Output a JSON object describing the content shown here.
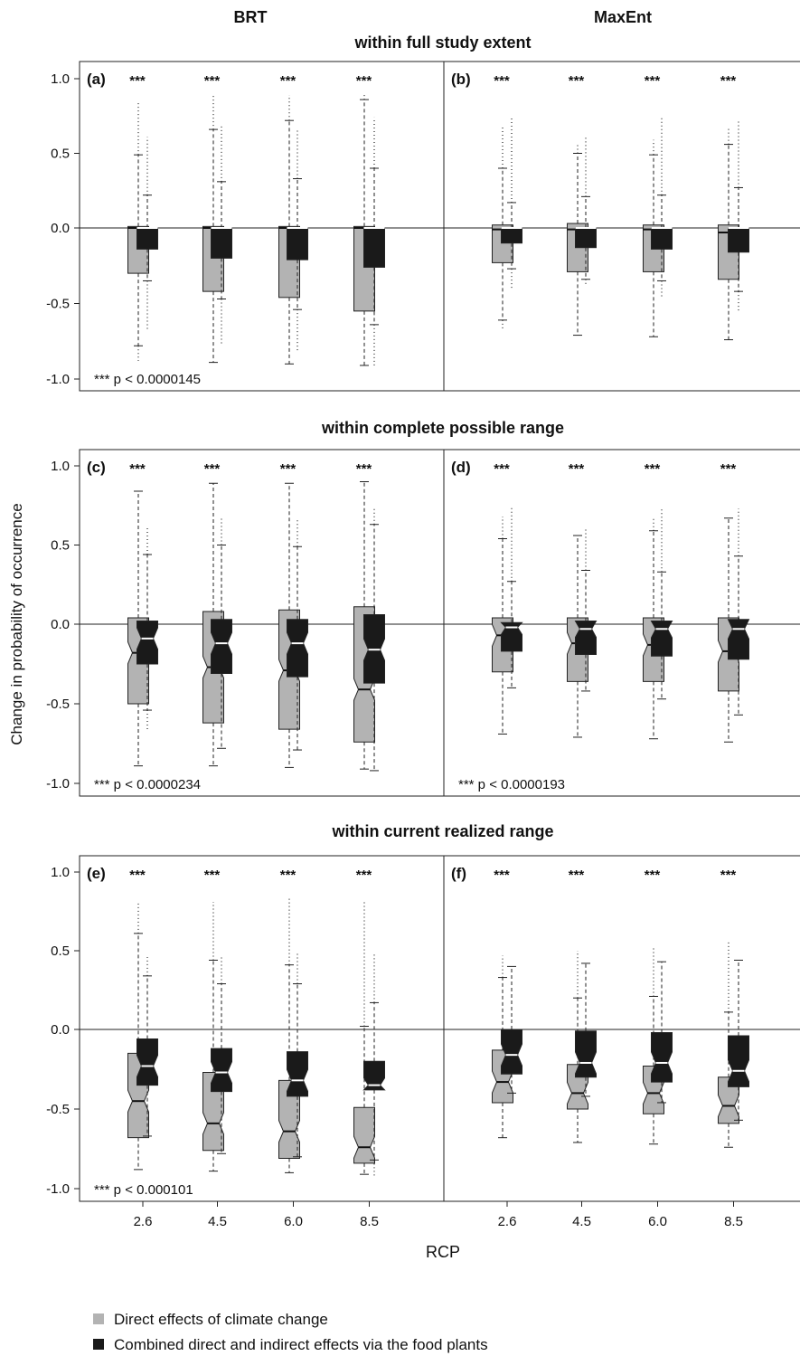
{
  "chart_data": {
    "type": "boxplot",
    "columns": [
      "BRT",
      "MaxEnt"
    ],
    "row_titles": [
      "within full study extent",
      "within complete possible range",
      "within current realized range"
    ],
    "xlabel": "RCP",
    "ylabel": "Change in probability of occurrence",
    "categories": [
      "2.6",
      "4.5",
      "6.0",
      "8.5"
    ],
    "yticks": [
      "1.0",
      "0.5",
      "0.0",
      "-0.5",
      "-1.0"
    ],
    "ylim": [
      -1.05,
      1.1
    ],
    "significance_marker": "***",
    "legend": [
      {
        "name": "Direct effects of climate change",
        "color": "#b3b3b3"
      },
      {
        "name": "Combined direct and indirect effects via the food plants",
        "color": "#1a1a1a"
      }
    ],
    "panels": [
      {
        "label": "(a)",
        "row": 0,
        "col": 0,
        "note": "*** p < 0.0000145",
        "notch": false,
        "groups": [
          {
            "direct": {
              "q1": -0.3,
              "med": 0.0,
              "q3": 0.01,
              "wlo": -0.78,
              "whi": 0.49,
              "min": -0.88,
              "max": 0.85
            },
            "combined": {
              "q1": -0.14,
              "med": 0.0,
              "q3": 0.0,
              "wlo": -0.35,
              "whi": 0.22,
              "min": -0.67,
              "max": 0.61
            }
          },
          {
            "direct": {
              "q1": -0.42,
              "med": 0.0,
              "q3": 0.01,
              "wlo": -0.89,
              "whi": 0.66,
              "min": -0.89,
              "max": 0.89
            },
            "combined": {
              "q1": -0.2,
              "med": 0.0,
              "q3": 0.0,
              "wlo": -0.47,
              "whi": 0.31,
              "min": -0.78,
              "max": 0.68
            }
          },
          {
            "direct": {
              "q1": -0.46,
              "med": 0.0,
              "q3": 0.01,
              "wlo": -0.9,
              "whi": 0.72,
              "min": -0.9,
              "max": 0.89
            },
            "combined": {
              "q1": -0.21,
              "med": 0.0,
              "q3": 0.0,
              "wlo": -0.54,
              "whi": 0.33,
              "min": -0.81,
              "max": 0.66
            }
          },
          {
            "direct": {
              "q1": -0.55,
              "med": 0.0,
              "q3": 0.01,
              "wlo": -0.91,
              "whi": 0.86,
              "min": -0.91,
              "max": 0.89
            },
            "combined": {
              "q1": -0.26,
              "med": 0.0,
              "q3": 0.0,
              "wlo": -0.64,
              "whi": 0.4,
              "min": -0.92,
              "max": 0.74
            }
          }
        ]
      },
      {
        "label": "(b)",
        "row": 0,
        "col": 1,
        "note": "",
        "notch": false,
        "groups": [
          {
            "direct": {
              "q1": -0.23,
              "med": -0.01,
              "q3": 0.02,
              "wlo": -0.61,
              "whi": 0.4,
              "min": -0.68,
              "max": 0.68
            },
            "combined": {
              "q1": -0.1,
              "med": 0.0,
              "q3": 0.0,
              "wlo": -0.27,
              "whi": 0.17,
              "min": -0.41,
              "max": 0.75
            }
          },
          {
            "direct": {
              "q1": -0.29,
              "med": -0.01,
              "q3": 0.03,
              "wlo": -0.71,
              "whi": 0.5,
              "min": -0.71,
              "max": 0.56
            },
            "combined": {
              "q1": -0.13,
              "med": 0.0,
              "q3": 0.0,
              "wlo": -0.34,
              "whi": 0.21,
              "min": -0.38,
              "max": 0.61
            }
          },
          {
            "direct": {
              "q1": -0.29,
              "med": -0.01,
              "q3": 0.02,
              "wlo": -0.72,
              "whi": 0.49,
              "min": -0.72,
              "max": 0.59
            },
            "combined": {
              "q1": -0.14,
              "med": 0.0,
              "q3": 0.0,
              "wlo": -0.35,
              "whi": 0.22,
              "min": -0.46,
              "max": 0.74
            }
          },
          {
            "direct": {
              "q1": -0.34,
              "med": -0.03,
              "q3": 0.02,
              "wlo": -0.74,
              "whi": 0.56,
              "min": -0.74,
              "max": 0.67
            },
            "combined": {
              "q1": -0.16,
              "med": 0.0,
              "q3": 0.0,
              "wlo": -0.42,
              "whi": 0.27,
              "min": -0.56,
              "max": 0.73
            }
          }
        ]
      },
      {
        "label": "(c)",
        "row": 1,
        "col": 0,
        "note": "*** p < 0.0000234",
        "notch": true,
        "groups": [
          {
            "direct": {
              "q1": -0.5,
              "med": -0.18,
              "q3": 0.04,
              "wlo": -0.89,
              "whi": 0.84,
              "min": -0.89,
              "max": 0.84
            },
            "combined": {
              "q1": -0.25,
              "med": -0.09,
              "q3": 0.02,
              "wlo": -0.54,
              "whi": 0.44,
              "min": -0.67,
              "max": 0.61
            }
          },
          {
            "direct": {
              "q1": -0.62,
              "med": -0.27,
              "q3": 0.08,
              "wlo": -0.89,
              "whi": 0.89,
              "min": -0.89,
              "max": 0.89
            },
            "combined": {
              "q1": -0.31,
              "med": -0.12,
              "q3": 0.03,
              "wlo": -0.78,
              "whi": 0.5,
              "min": -0.78,
              "max": 0.68
            }
          },
          {
            "direct": {
              "q1": -0.66,
              "med": -0.29,
              "q3": 0.09,
              "wlo": -0.9,
              "whi": 0.89,
              "min": -0.9,
              "max": 0.89
            },
            "combined": {
              "q1": -0.33,
              "med": -0.12,
              "q3": 0.03,
              "wlo": -0.79,
              "whi": 0.49,
              "min": -0.79,
              "max": 0.66
            }
          },
          {
            "direct": {
              "q1": -0.74,
              "med": -0.41,
              "q3": 0.11,
              "wlo": -0.91,
              "whi": 0.9,
              "min": -0.91,
              "max": 0.9
            },
            "combined": {
              "q1": -0.37,
              "med": -0.16,
              "q3": 0.06,
              "wlo": -0.92,
              "whi": 0.63,
              "min": -0.92,
              "max": 0.74
            }
          }
        ]
      },
      {
        "label": "(d)",
        "row": 1,
        "col": 1,
        "note": "*** p < 0.0000193",
        "notch": true,
        "groups": [
          {
            "direct": {
              "q1": -0.3,
              "med": -0.07,
              "q3": 0.04,
              "wlo": -0.69,
              "whi": 0.54,
              "min": -0.69,
              "max": 0.68
            },
            "combined": {
              "q1": -0.17,
              "med": -0.02,
              "q3": 0.01,
              "wlo": -0.4,
              "whi": 0.27,
              "min": -0.4,
              "max": 0.75
            }
          },
          {
            "direct": {
              "q1": -0.36,
              "med": -0.12,
              "q3": 0.04,
              "wlo": -0.71,
              "whi": 0.56,
              "min": -0.71,
              "max": 0.56
            },
            "combined": {
              "q1": -0.19,
              "med": -0.03,
              "q3": 0.02,
              "wlo": -0.42,
              "whi": 0.34,
              "min": -0.42,
              "max": 0.61
            }
          },
          {
            "direct": {
              "q1": -0.36,
              "med": -0.13,
              "q3": 0.04,
              "wlo": -0.72,
              "whi": 0.59,
              "min": -0.72,
              "max": 0.68
            },
            "combined": {
              "q1": -0.2,
              "med": -0.03,
              "q3": 0.02,
              "wlo": -0.47,
              "whi": 0.33,
              "min": -0.47,
              "max": 0.73
            }
          },
          {
            "direct": {
              "q1": -0.42,
              "med": -0.17,
              "q3": 0.04,
              "wlo": -0.74,
              "whi": 0.67,
              "min": -0.74,
              "max": 0.67
            },
            "combined": {
              "q1": -0.22,
              "med": -0.03,
              "q3": 0.03,
              "wlo": -0.57,
              "whi": 0.43,
              "min": -0.57,
              "max": 0.73
            }
          }
        ]
      },
      {
        "label": "(e)",
        "row": 2,
        "col": 0,
        "note": "*** p < 0.000101",
        "notch": true,
        "groups": [
          {
            "direct": {
              "q1": -0.68,
              "med": -0.45,
              "q3": -0.15,
              "wlo": -0.88,
              "whi": 0.61,
              "min": -0.88,
              "max": 0.8
            },
            "combined": {
              "q1": -0.35,
              "med": -0.23,
              "q3": -0.06,
              "wlo": -0.67,
              "whi": 0.34,
              "min": -0.67,
              "max": 0.46
            }
          },
          {
            "direct": {
              "q1": -0.76,
              "med": -0.59,
              "q3": -0.27,
              "wlo": -0.89,
              "whi": 0.44,
              "min": -0.89,
              "max": 0.81
            },
            "combined": {
              "q1": -0.39,
              "med": -0.27,
              "q3": -0.12,
              "wlo": -0.78,
              "whi": 0.29,
              "min": -0.78,
              "max": 0.47
            }
          },
          {
            "direct": {
              "q1": -0.81,
              "med": -0.64,
              "q3": -0.32,
              "wlo": -0.9,
              "whi": 0.41,
              "min": -0.9,
              "max": 0.83
            },
            "combined": {
              "q1": -0.42,
              "med": -0.32,
              "q3": -0.14,
              "wlo": -0.8,
              "whi": 0.29,
              "min": -0.8,
              "max": 0.48
            }
          },
          {
            "direct": {
              "q1": -0.84,
              "med": -0.74,
              "q3": -0.49,
              "wlo": -0.91,
              "whi": 0.02,
              "min": -0.91,
              "max": 0.82
            },
            "combined": {
              "q1": -0.38,
              "med": -0.35,
              "q3": -0.2,
              "wlo": -0.82,
              "whi": 0.17,
              "min": -0.92,
              "max": 0.48
            }
          }
        ]
      },
      {
        "label": "(f)",
        "row": 2,
        "col": 1,
        "note": "",
        "notch": true,
        "groups": [
          {
            "direct": {
              "q1": -0.46,
              "med": -0.33,
              "q3": -0.13,
              "wlo": -0.68,
              "whi": 0.33,
              "min": -0.68,
              "max": 0.47
            },
            "combined": {
              "q1": -0.28,
              "med": -0.16,
              "q3": 0.0,
              "wlo": -0.4,
              "whi": 0.4,
              "min": -0.4,
              "max": 0.4
            }
          },
          {
            "direct": {
              "q1": -0.5,
              "med": -0.4,
              "q3": -0.22,
              "wlo": -0.71,
              "whi": 0.2,
              "min": -0.71,
              "max": 0.5
            },
            "combined": {
              "q1": -0.3,
              "med": -0.21,
              "q3": -0.01,
              "wlo": -0.42,
              "whi": 0.42,
              "min": -0.42,
              "max": 0.42
            }
          },
          {
            "direct": {
              "q1": -0.53,
              "med": -0.4,
              "q3": -0.23,
              "wlo": -0.72,
              "whi": 0.21,
              "min": -0.72,
              "max": 0.52
            },
            "combined": {
              "q1": -0.33,
              "med": -0.21,
              "q3": -0.02,
              "wlo": -0.46,
              "whi": 0.43,
              "min": -0.46,
              "max": 0.43
            }
          },
          {
            "direct": {
              "q1": -0.59,
              "med": -0.48,
              "q3": -0.3,
              "wlo": -0.74,
              "whi": 0.11,
              "min": -0.74,
              "max": 0.56
            },
            "combined": {
              "q1": -0.36,
              "med": -0.26,
              "q3": -0.04,
              "wlo": -0.57,
              "whi": 0.44,
              "min": -0.57,
              "max": 0.44
            }
          }
        ]
      }
    ]
  }
}
